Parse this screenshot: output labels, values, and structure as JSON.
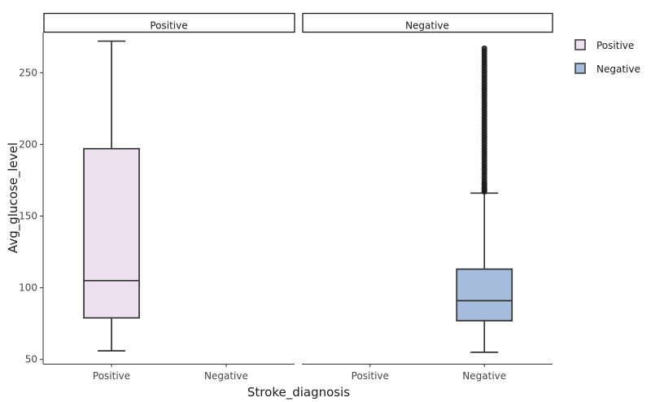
{
  "chart_data": {
    "type": "boxplot",
    "xlabel": "Stroke_diagnosis",
    "ylabel": "Avg_glucose_level",
    "ylim": [
      47,
      278
    ],
    "yticks": [
      50,
      100,
      150,
      200,
      250
    ],
    "categories": [
      "Positive",
      "Negative"
    ],
    "facets": [
      {
        "label": "Positive",
        "boxes": [
          {
            "category": "Positive",
            "series": "Positive",
            "min": 56,
            "q1": 79,
            "median": 105,
            "q3": 197,
            "max": 272,
            "outliers": []
          }
        ]
      },
      {
        "label": "Negative",
        "boxes": [
          {
            "category": "Negative",
            "series": "Negative",
            "min": 55,
            "q1": 77,
            "median": 91,
            "q3": 113,
            "max": 166,
            "outliers": [
              167,
              168,
              169,
              170,
              172,
              173,
              175,
              177,
              179,
              181,
              183,
              185,
              187,
              189,
              191,
              193,
              195,
              197,
              199,
              201,
              203,
              205,
              207,
              209,
              211,
              213,
              215,
              217,
              219,
              221,
              223,
              225,
              227,
              229,
              231,
              233,
              235,
              237,
              239,
              241,
              243,
              245,
              247,
              249,
              251,
              253,
              255,
              257,
              259,
              261,
              263,
              265,
              267
            ]
          }
        ]
      }
    ],
    "legend": {
      "position": "right",
      "entries": [
        {
          "name": "Positive",
          "color": "#ede1ef"
        },
        {
          "name": "Negative",
          "color": "#a6bcdc"
        }
      ]
    },
    "grid": false
  }
}
